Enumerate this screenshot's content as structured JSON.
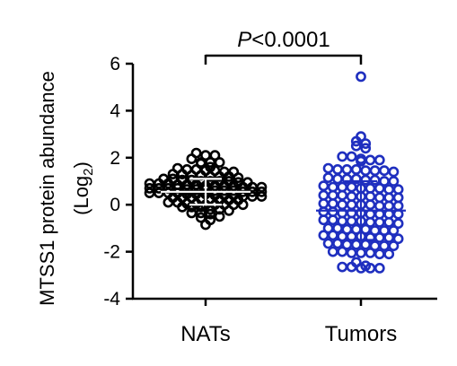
{
  "chart_data": {
    "type": "scatter",
    "subtype": "dot-plot",
    "categories": [
      "NATs",
      "Tumors"
    ],
    "ylabel_main": "MTSS1 protein abundance",
    "ylabel_unit_prefix": "(Log",
    "ylabel_unit_sub": "2",
    "ylabel_unit_suffix": ")",
    "ylim": [
      -4,
      6
    ],
    "yticks": [
      "-4",
      "-2",
      "0",
      "2",
      "4",
      "6"
    ],
    "yticks_values": [
      -4,
      -2,
      0,
      2,
      4,
      6
    ],
    "grid": false,
    "annotation": {
      "p_symbol": "P",
      "p_rest": "<0.0001"
    },
    "series": [
      {
        "category": "NATs",
        "color": "#000000",
        "mean": 0.55,
        "sd": 0.55,
        "values": [
          2.2,
          2.1,
          2.1,
          1.95,
          1.8,
          1.8,
          1.8,
          1.75,
          1.6,
          1.55,
          1.5,
          1.5,
          1.45,
          1.45,
          1.4,
          1.4,
          1.3,
          1.3,
          1.25,
          1.25,
          1.2,
          1.2,
          1.2,
          1.15,
          1.1,
          1.1,
          1.05,
          1.05,
          1.0,
          1.0,
          1.0,
          1.0,
          0.95,
          0.95,
          0.9,
          0.9,
          0.9,
          0.85,
          0.85,
          0.85,
          0.8,
          0.8,
          0.8,
          0.8,
          0.75,
          0.75,
          0.75,
          0.7,
          0.7,
          0.7,
          0.7,
          0.65,
          0.65,
          0.65,
          0.6,
          0.6,
          0.6,
          0.55,
          0.55,
          0.55,
          0.5,
          0.5,
          0.5,
          0.5,
          0.45,
          0.45,
          0.45,
          0.4,
          0.4,
          0.4,
          0.35,
          0.35,
          0.35,
          0.3,
          0.3,
          0.3,
          0.25,
          0.25,
          0.2,
          0.2,
          0.2,
          0.1,
          0.1,
          0.05,
          0.05,
          0.0,
          0.0,
          0.0,
          0.0,
          0.0,
          -0.1,
          -0.1,
          -0.1,
          -0.2,
          -0.2,
          -0.25,
          -0.35,
          -0.35,
          -0.4,
          -0.5,
          -0.55,
          -0.65,
          -0.85
        ]
      },
      {
        "category": "Tumors",
        "color": "#1f2fbf",
        "mean": -0.25,
        "sd": 1.25,
        "values": [
          5.45,
          2.9,
          2.7,
          2.6,
          2.5,
          2.4,
          2.05,
          2.05,
          1.95,
          1.9,
          1.9,
          1.85,
          1.55,
          1.5,
          1.5,
          1.5,
          1.45,
          1.45,
          1.45,
          1.4,
          1.15,
          1.1,
          1.1,
          1.1,
          1.05,
          1.05,
          1.0,
          1.0,
          0.8,
          0.75,
          0.75,
          0.75,
          0.7,
          0.7,
          0.7,
          0.65,
          0.65,
          0.4,
          0.4,
          0.4,
          0.35,
          0.35,
          0.35,
          0.3,
          0.3,
          0.3,
          0.05,
          0.05,
          0.0,
          0.0,
          0.0,
          0.0,
          -0.05,
          -0.05,
          -0.05,
          -0.3,
          -0.3,
          -0.35,
          -0.35,
          -0.35,
          -0.4,
          -0.4,
          -0.4,
          -0.4,
          -0.65,
          -0.65,
          -0.7,
          -0.7,
          -0.7,
          -0.75,
          -0.75,
          -0.75,
          -0.8,
          -1.0,
          -1.0,
          -1.05,
          -1.05,
          -1.05,
          -1.1,
          -1.1,
          -1.1,
          -1.3,
          -1.3,
          -1.35,
          -1.35,
          -1.35,
          -1.4,
          -1.4,
          -1.4,
          -1.45,
          -1.65,
          -1.65,
          -1.7,
          -1.7,
          -1.7,
          -1.75,
          -1.75,
          -1.75,
          -2.0,
          -2.0,
          -2.05,
          -2.05,
          -2.05,
          -2.1,
          -2.1,
          -2.45,
          -2.6,
          -2.65,
          -2.65,
          -2.7,
          -2.7,
          -2.7
        ]
      }
    ]
  }
}
